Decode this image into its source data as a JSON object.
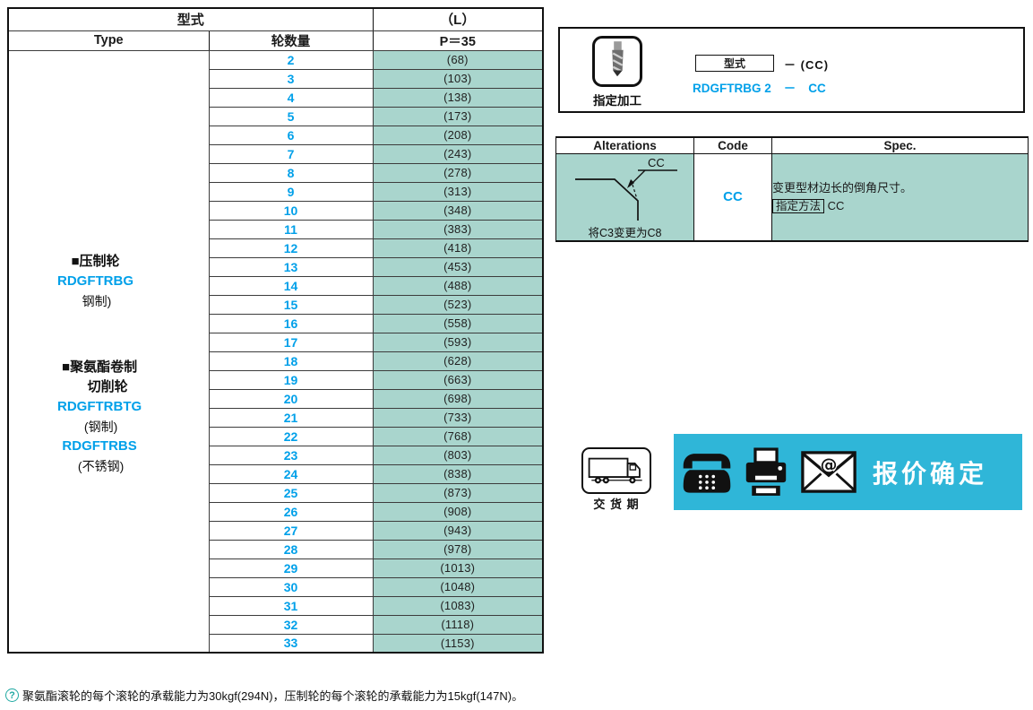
{
  "colors": {
    "teal": "#a9d5cd",
    "banner": "#2fb6d8",
    "blue": "#00a0e9"
  },
  "icons": {
    "processing": "drill-icon",
    "delivery": "truck-icon",
    "contact": [
      "phone-icon",
      "fax-icon",
      "email-icon"
    ],
    "footnote": "question-icon"
  },
  "main_table": {
    "header": {
      "type_group": "型式",
      "type_en": "Type",
      "wheel_count": "轮数量",
      "l_label": "（L）",
      "pitch": "P＝35"
    },
    "type_labels": {
      "group1": {
        "title": "■压制轮",
        "code": "RDGFTRBG",
        "material": "钢制)"
      },
      "group2": {
        "title1": "■聚氨酯卷制",
        "title2": "切削轮",
        "code1": "RDGFTRBTG",
        "material1": "(钢制)",
        "code2": "RDGFTRBS",
        "material2": "(不锈钢)"
      }
    },
    "rows": [
      {
        "n": "2",
        "l": "(68)"
      },
      {
        "n": "3",
        "l": "(103)"
      },
      {
        "n": "4",
        "l": "(138)"
      },
      {
        "n": "5",
        "l": "(173)"
      },
      {
        "n": "6",
        "l": "(208)"
      },
      {
        "n": "7",
        "l": "(243)"
      },
      {
        "n": "8",
        "l": "(278)"
      },
      {
        "n": "9",
        "l": "(313)"
      },
      {
        "n": "10",
        "l": "(348)"
      },
      {
        "n": "11",
        "l": "(383)"
      },
      {
        "n": "12",
        "l": "(418)"
      },
      {
        "n": "13",
        "l": "(453)"
      },
      {
        "n": "14",
        "l": "(488)"
      },
      {
        "n": "15",
        "l": "(523)"
      },
      {
        "n": "16",
        "l": "(558)"
      },
      {
        "n": "17",
        "l": "(593)"
      },
      {
        "n": "18",
        "l": "(628)"
      },
      {
        "n": "19",
        "l": "(663)"
      },
      {
        "n": "20",
        "l": "(698)"
      },
      {
        "n": "21",
        "l": "(733)"
      },
      {
        "n": "22",
        "l": "(768)"
      },
      {
        "n": "23",
        "l": "(803)"
      },
      {
        "n": "24",
        "l": "(838)"
      },
      {
        "n": "25",
        "l": "(873)"
      },
      {
        "n": "26",
        "l": "(908)"
      },
      {
        "n": "27",
        "l": "(943)"
      },
      {
        "n": "28",
        "l": "(978)"
      },
      {
        "n": "29",
        "l": "(1013)"
      },
      {
        "n": "30",
        "l": "(1048)"
      },
      {
        "n": "31",
        "l": "(1083)"
      },
      {
        "n": "32",
        "l": "(1118)"
      },
      {
        "n": "33",
        "l": "(1153)"
      }
    ]
  },
  "processing": {
    "label": "指定加工",
    "type_box": "型式",
    "pattern_suffix": "－ (CC)",
    "example_name": "RDGFTRBG 2",
    "example_dash": "－",
    "example_code": "CC"
  },
  "alterations": {
    "headers": [
      "Alterations",
      "Code",
      "Spec."
    ],
    "diagram_label": "CC",
    "caption": "将C3变更为C8",
    "code": "CC",
    "spec_text": "变更型材边长的倒角尺寸。",
    "method_label": "指定方法",
    "method_value": "CC"
  },
  "delivery": {
    "label": "交 货 期"
  },
  "quote": {
    "text": "报价确定"
  },
  "footnote": {
    "marker": "?",
    "text": "聚氨酯滚轮的每个滚轮的承载能力为30kgf(294N)，压制轮的每个滚轮的承载能力为15kgf(147N)。"
  }
}
